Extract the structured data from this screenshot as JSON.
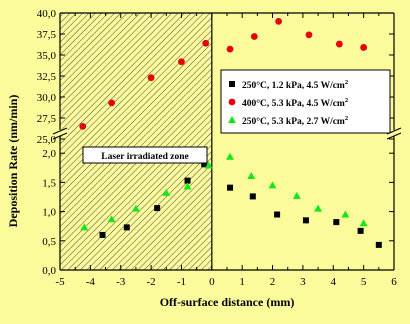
{
  "chart_data": {
    "type": "scatter",
    "xlabel": "Off-surface distance (mm)",
    "ylabel": "Deposition Rate (nm/min)",
    "x_ticks": [
      "-5",
      "-4",
      "-3",
      "-2",
      "-1",
      "0",
      "1",
      "2",
      "3",
      "4",
      "5",
      "6"
    ],
    "upper_panel": {
      "ylim": [
        25.0,
        40.0
      ],
      "y_ticks": [
        "25,0",
        "27,5",
        "30,0",
        "32,5",
        "35,0",
        "37,5",
        "40,0"
      ]
    },
    "lower_panel": {
      "ylim": [
        0.0,
        2.5
      ],
      "y_ticks": [
        "0,0",
        "0,5",
        "1,0",
        "1,5",
        "2,0"
      ]
    },
    "xlim": [
      -5,
      6
    ],
    "annotation": "Laser irradiated zone",
    "shaded_region": [
      -5,
      0
    ],
    "legend_position": "right",
    "series": [
      {
        "name": "250°C, 1.2 kPa, 4.5 W/cm",
        "superscript": "2",
        "marker": "square",
        "color": "#000000",
        "panel": "lower",
        "points": [
          [
            -3.6,
            0.6
          ],
          [
            -2.8,
            0.73
          ],
          [
            -1.8,
            1.06
          ],
          [
            -0.8,
            1.53
          ],
          [
            -0.25,
            1.81
          ],
          [
            0.6,
            1.41
          ],
          [
            1.35,
            1.26
          ],
          [
            2.15,
            0.95
          ],
          [
            3.1,
            0.85
          ],
          [
            4.1,
            0.82
          ],
          [
            4.9,
            0.67
          ],
          [
            5.5,
            0.43
          ]
        ]
      },
      {
        "name": "400°C, 5.3 kPa, 4.5 W/cm",
        "superscript": "2",
        "marker": "circle",
        "color": "#e8000c",
        "panel": "upper",
        "points": [
          [
            -4.25,
            26.5
          ],
          [
            -3.3,
            29.3
          ],
          [
            -2.0,
            32.3
          ],
          [
            -1.0,
            34.2
          ],
          [
            -0.2,
            36.4
          ],
          [
            0.6,
            35.7
          ],
          [
            1.4,
            37.2
          ],
          [
            2.2,
            39.0
          ],
          [
            3.2,
            37.4
          ],
          [
            4.2,
            36.3
          ],
          [
            5.0,
            35.9
          ]
        ]
      },
      {
        "name": "250°C, 5.3 kPa, 2.7 W/cm",
        "superscript": "2",
        "marker": "triangle",
        "color": "#19e619",
        "panel": "lower",
        "points": [
          [
            -4.2,
            0.73
          ],
          [
            -3.3,
            0.87
          ],
          [
            -2.5,
            1.05
          ],
          [
            -1.5,
            1.32
          ],
          [
            -0.8,
            1.43
          ],
          [
            -0.1,
            1.79
          ],
          [
            0.6,
            1.94
          ],
          [
            1.3,
            1.61
          ],
          [
            2.0,
            1.45
          ],
          [
            2.8,
            1.27
          ],
          [
            3.5,
            1.05
          ],
          [
            4.4,
            0.95
          ],
          [
            5.0,
            0.8
          ]
        ]
      }
    ]
  }
}
